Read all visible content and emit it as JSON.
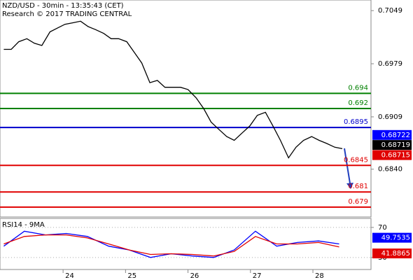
{
  "chart_data": [
    {
      "type": "line",
      "title": "NZD/USD - 30min - 13:35:43 (CET)",
      "subtitle": "Research © 2017 TRADING CENTRAL",
      "x": [
        23.05,
        23.17,
        23.29,
        23.42,
        23.54,
        23.66,
        23.79,
        23.91,
        24.03,
        24.16,
        24.28,
        24.4,
        24.52,
        24.65,
        24.77,
        24.89,
        25.02,
        25.14,
        25.26,
        25.39,
        25.51,
        25.63,
        25.76,
        25.88,
        26.0,
        26.13,
        26.25,
        26.37,
        26.5,
        26.62,
        26.74,
        26.87,
        26.99,
        27.11,
        27.24,
        27.36,
        27.48,
        27.61,
        27.73,
        27.85,
        27.98,
        28.1,
        28.22,
        28.35,
        28.47
      ],
      "series": [
        {
          "color": "#000000",
          "values": [
            0.6998,
            0.6998,
            0.7008,
            0.7012,
            0.7006,
            0.7003,
            0.7021,
            0.7026,
            0.7031,
            0.7033,
            0.7035,
            0.7028,
            0.7024,
            0.7019,
            0.7012,
            0.7012,
            0.7008,
            0.6994,
            0.698,
            0.6954,
            0.6957,
            0.6948,
            0.6948,
            0.6948,
            0.6945,
            0.6934,
            0.692,
            0.6902,
            0.6892,
            0.6883,
            0.6878,
            0.6888,
            0.6897,
            0.6911,
            0.6915,
            0.6897,
            0.6878,
            0.6855,
            0.6869,
            0.6878,
            0.6883,
            0.6878,
            0.6874,
            0.6869,
            0.6867
          ]
        }
      ],
      "xlim": [
        22.99,
        28.93
      ],
      "xticks": [
        24,
        25,
        26,
        27,
        28
      ],
      "ylim": [
        0.6777,
        0.7063
      ],
      "yticks": [
        0.7049,
        0.6979,
        0.6909,
        {
          "value": 0.684,
          "label": "0.6840"
        }
      ],
      "levels": [
        {
          "value": 0.694,
          "color": "#008000"
        },
        {
          "value": 0.692,
          "color": "#008000"
        },
        {
          "value": 0.6895,
          "color": "#0000cc"
        },
        {
          "value": 0.6845,
          "color": "#e00000"
        },
        {
          "value": 0.681,
          "color": "#e00000"
        },
        {
          "value": 0.679,
          "color": "#e00000"
        }
      ],
      "price_tags": [
        {
          "value": 0.68722,
          "color": "#0000ff"
        },
        {
          "value": 0.68719,
          "color": "#000000"
        },
        {
          "value": 0.68715,
          "color": "#e00000"
        }
      ]
    },
    {
      "type": "line",
      "title": "RSI14 - 9MA",
      "x": [
        23.05,
        23.38,
        23.72,
        24.05,
        24.39,
        24.73,
        25.06,
        25.4,
        25.73,
        26.07,
        26.41,
        26.74,
        27.08,
        27.42,
        27.75,
        28.09,
        28.42
      ],
      "series": [
        {
          "color": "#0000ff",
          "values": [
            45,
            65,
            60,
            62,
            58,
            45,
            40,
            30,
            35,
            32,
            30,
            40,
            65,
            45,
            50,
            52,
            48
          ]
        },
        {
          "color": "#e00000",
          "values": [
            48,
            58,
            60,
            60,
            56,
            48,
            40,
            34,
            35,
            34,
            32,
            38,
            58,
            48,
            48,
            50,
            44
          ]
        }
      ],
      "xlim": [
        22.99,
        28.93
      ],
      "ylim": [
        14,
        82
      ],
      "yticks": [
        70,
        30
      ],
      "price_tags": [
        {
          "value": 49.7535,
          "color": "#0000ff"
        },
        {
          "value": 41.8865,
          "color": "#e00000"
        }
      ]
    }
  ]
}
